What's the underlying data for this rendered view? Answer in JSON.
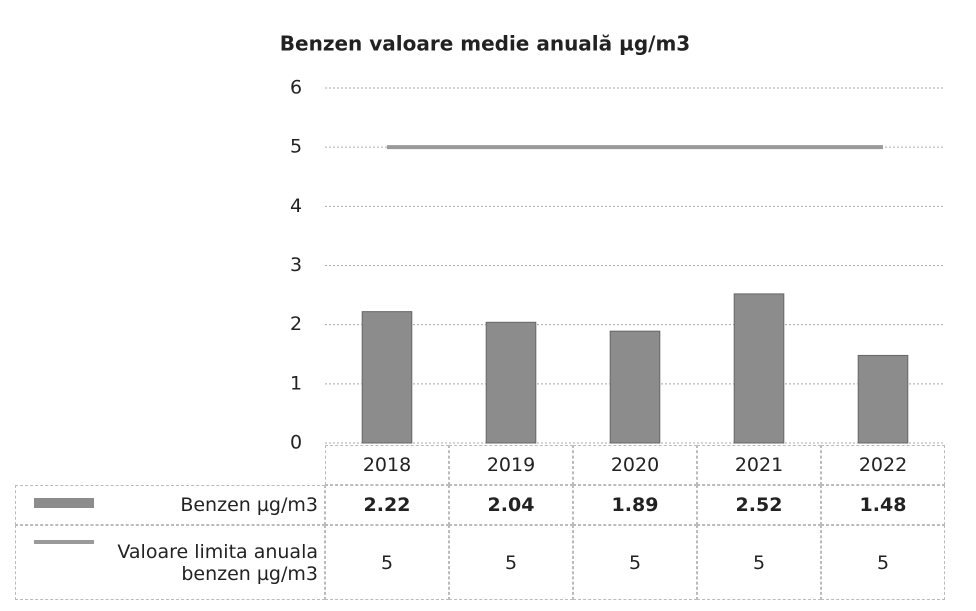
{
  "chart_data": {
    "type": "bar",
    "title": "Benzen valoare medie anuală µg/m3",
    "categories": [
      "2018",
      "2019",
      "2020",
      "2021",
      "2022"
    ],
    "series": [
      {
        "name": "Benzen µg/m3",
        "type": "bar",
        "color": "#8c8c8c",
        "values": [
          2.22,
          2.04,
          1.89,
          2.52,
          1.48
        ]
      },
      {
        "name": "Valoare limita anuala benzen µg/m3",
        "type": "line",
        "color": "#9a9a9a",
        "values": [
          5,
          5,
          5,
          5,
          5
        ]
      }
    ],
    "ylim": [
      0,
      6
    ],
    "yticks": [
      0,
      1,
      2,
      3,
      4,
      5,
      6
    ],
    "grid": true,
    "data_table": true
  }
}
